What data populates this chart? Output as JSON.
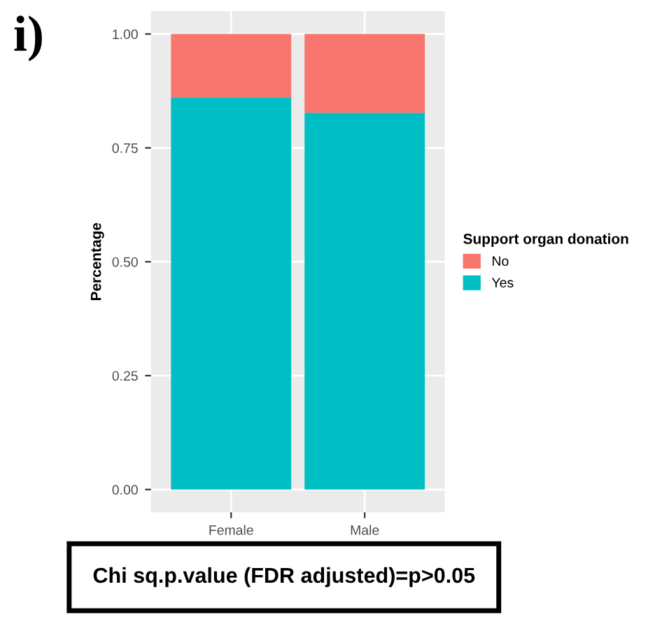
{
  "chart_data": {
    "type": "bar",
    "stacked": true,
    "title": "i)",
    "ylabel": "Percentage",
    "legend_title": "Support organ donation",
    "categories": [
      "Female",
      "Male"
    ],
    "series": [
      {
        "name": "Yes",
        "color": "#00bfc4",
        "values": [
          0.861,
          0.827
        ]
      },
      {
        "name": "No",
        "color": "#f8766d",
        "values": [
          0.139,
          0.173
        ]
      }
    ],
    "ylim": [
      -0.05,
      1.05
    ],
    "yticks": [
      {
        "value": 0,
        "label": "0.00"
      },
      {
        "value": 0.25,
        "label": "0.25"
      },
      {
        "value": 0.5,
        "label": "0.50"
      },
      {
        "value": 0.75,
        "label": "0.75"
      },
      {
        "value": 1,
        "label": "1.00"
      }
    ],
    "grid": true,
    "legend": "right",
    "annotations": [
      "Chi sq.p.value (FDR adjusted)=p>0.05"
    ]
  }
}
